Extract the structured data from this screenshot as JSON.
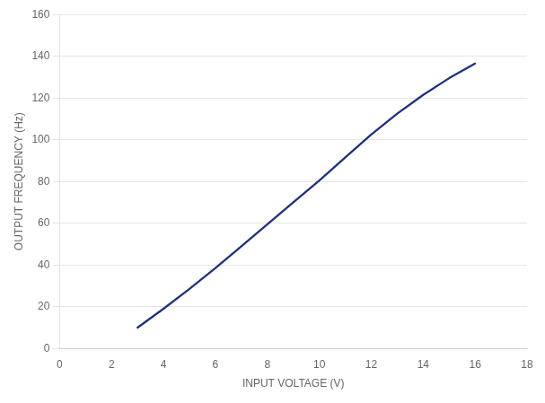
{
  "chart_data": {
    "type": "line",
    "x": [
      3.0,
      4.0,
      5.0,
      6.0,
      7.0,
      8.0,
      9.0,
      10.0,
      11.0,
      12.0,
      13.0,
      14.0,
      15.0,
      16.0
    ],
    "values": [
      10.0,
      19.0,
      28.5,
      38.5,
      49.0,
      59.5,
      70.0,
      80.5,
      91.5,
      102.5,
      112.5,
      121.5,
      129.5,
      136.5
    ],
    "color": "#1f3080",
    "xlabel": "INPUT VOLTAGE (V)",
    "ylabel": "OUTPUT FREQUENCY (Hz)",
    "xlim": [
      0,
      18
    ],
    "ylim": [
      0,
      160
    ],
    "xticks": [
      0,
      2,
      4,
      6,
      8,
      10,
      12,
      14,
      16,
      18
    ],
    "yticks": [
      0,
      20,
      40,
      60,
      80,
      100,
      120,
      140,
      160
    ],
    "grid": "y"
  }
}
